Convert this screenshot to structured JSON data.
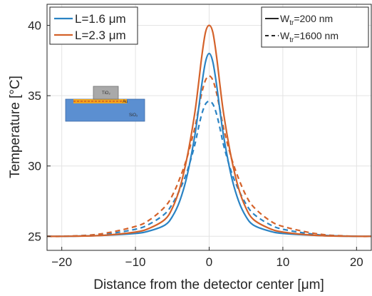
{
  "chart_data": {
    "type": "line",
    "xlabel": "Distance from the detector center [μm]",
    "ylabel": "Temperature [°C]",
    "xlim": [
      -22,
      22
    ],
    "ylim": [
      24.0,
      41.5
    ],
    "xticks": [
      -20,
      -10,
      0,
      10,
      20
    ],
    "yticks": [
      25,
      30,
      35,
      40
    ],
    "grid": true,
    "legend_color": {
      "placement": "top-left",
      "entries": [
        {
          "label": "L=1.6 μm",
          "color": "#2a83c4"
        },
        {
          "label": "L=2.3 μm",
          "color": "#d4622a"
        }
      ]
    },
    "legend_style": {
      "placement": "top-right",
      "entries": [
        {
          "label_main": "W",
          "label_sub": "tr",
          "label_rest": "=200 nm",
          "dash": "solid"
        },
        {
          "label_main": "W",
          "label_sub": "tr",
          "label_rest": "=1600 nm",
          "dash": "dashed"
        }
      ]
    },
    "series": [
      {
        "name": "L=1.6 μm, Wtr=200 nm",
        "color": "#2a83c4",
        "dash": "solid",
        "x": [
          -22,
          -20,
          -15,
          -10,
          -8,
          -6,
          -5,
          -4,
          -3,
          -2,
          -1.5,
          -1,
          -0.5,
          0,
          0.5,
          1,
          1.5,
          2,
          3,
          4,
          5,
          6,
          8,
          10,
          15,
          20,
          22
        ],
        "y": [
          25.0,
          25.0,
          25.05,
          25.2,
          25.4,
          25.8,
          26.4,
          27.5,
          29.3,
          32.0,
          33.8,
          35.8,
          37.4,
          38.0,
          37.4,
          35.8,
          33.8,
          32.0,
          29.3,
          27.5,
          26.4,
          25.8,
          25.4,
          25.2,
          25.05,
          25.0,
          25.0
        ]
      },
      {
        "name": "L=2.3 μm, Wtr=200 nm",
        "color": "#d4622a",
        "dash": "solid",
        "x": [
          -22,
          -20,
          -15,
          -10,
          -8,
          -6,
          -5,
          -4,
          -3,
          -2,
          -1.5,
          -1,
          -0.5,
          0,
          0.5,
          1,
          1.5,
          2,
          3,
          4,
          5,
          6,
          8,
          10,
          15,
          20,
          22
        ],
        "y": [
          25.0,
          25.0,
          25.05,
          25.3,
          25.6,
          26.2,
          27.0,
          28.4,
          30.6,
          33.6,
          35.6,
          37.8,
          39.5,
          40.0,
          39.5,
          37.8,
          35.6,
          33.6,
          30.6,
          28.4,
          27.0,
          26.2,
          25.6,
          25.3,
          25.05,
          25.0,
          25.0
        ]
      },
      {
        "name": "L=1.6 μm, Wtr=1600 nm",
        "color": "#2a83c4",
        "dash": "dashed",
        "x": [
          -22,
          -20,
          -15,
          -10,
          -8,
          -6,
          -5,
          -4,
          -3,
          -2,
          -1.5,
          -1,
          -0.5,
          0,
          0.5,
          1,
          1.5,
          2,
          3,
          4,
          5,
          6,
          8,
          10,
          15,
          20,
          22
        ],
        "y": [
          25.0,
          25.0,
          25.1,
          25.5,
          25.9,
          26.6,
          27.3,
          28.3,
          29.6,
          31.4,
          32.6,
          33.7,
          34.4,
          34.6,
          34.4,
          33.7,
          32.6,
          31.4,
          29.6,
          28.3,
          27.3,
          26.6,
          25.9,
          25.5,
          25.1,
          25.0,
          25.0
        ]
      },
      {
        "name": "L=2.3 μm, Wtr=1600 nm",
        "color": "#d4622a",
        "dash": "dashed",
        "x": [
          -22,
          -20,
          -15,
          -10,
          -8,
          -6,
          -5,
          -4,
          -3,
          -2,
          -1.5,
          -1,
          -0.5,
          0,
          0.5,
          1,
          1.5,
          2,
          3,
          4,
          5,
          6,
          8,
          10,
          15,
          20,
          22
        ],
        "y": [
          25.0,
          25.0,
          25.15,
          25.7,
          26.2,
          27.1,
          27.9,
          29.1,
          30.6,
          32.6,
          33.9,
          35.2,
          36.1,
          36.4,
          36.1,
          35.2,
          33.9,
          32.6,
          30.6,
          29.1,
          27.9,
          27.1,
          26.2,
          25.7,
          25.15,
          25.0,
          25.0
        ]
      }
    ],
    "inset": {
      "labels": {
        "top": "TiO₂",
        "middle": "Au",
        "bottom": "SiO₂"
      },
      "colors": {
        "top": "#a9a9a9",
        "middle": "#f2a51c",
        "bottom": "#5b8fd1"
      }
    }
  }
}
